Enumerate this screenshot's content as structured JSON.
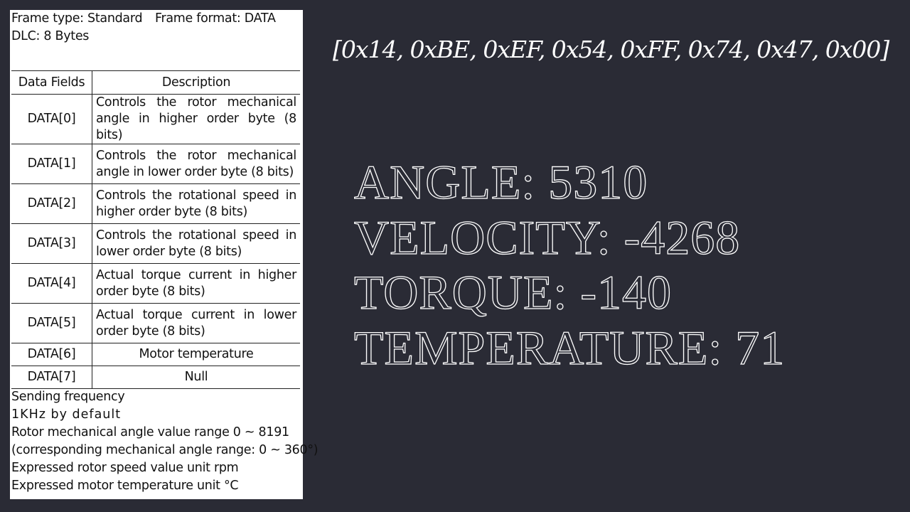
{
  "header": {
    "frame_type": "Frame type: Standard",
    "frame_format": "Frame format: DATA",
    "dlc": "DLC: 8 Bytes"
  },
  "table": {
    "columns": [
      "Data Fields",
      "Description"
    ],
    "rows": [
      [
        "DATA[0]",
        "Controls the rotor mechanical angle in higher order byte (8 bits)"
      ],
      [
        "DATA[1]",
        "Controls the rotor mechanical angle in lower order byte (8 bits)"
      ],
      [
        "DATA[2]",
        "Controls the rotational speed in higher order byte (8 bits)"
      ],
      [
        "DATA[3]",
        "Controls the rotational speed in lower order byte (8 bits)"
      ],
      [
        "DATA[4]",
        "Actual torque current in higher order byte (8 bits)"
      ],
      [
        "DATA[5]",
        "Actual torque current in lower order byte (8 bits)"
      ],
      [
        "DATA[6]",
        "Motor temperature"
      ],
      [
        "DATA[7]",
        "Null"
      ]
    ]
  },
  "notes": [
    "Sending frequency",
    "1KHz by default",
    "Rotor mechanical angle value range 0 ~ 8191",
    "(corresponding mechanical angle range: 0 ~ 360°)",
    "Expressed rotor speed value unit rpm",
    "Expressed motor temperature unit °C"
  ],
  "bytes": "[0x14, 0xBE, 0xEF, 0x54, 0xFF, 0x74, 0x47, 0x00]",
  "readouts": [
    "ANGLE: 5310",
    "VELOCITY: -4268",
    "TORQUE: -140",
    "TEMPERATURE: 71"
  ]
}
